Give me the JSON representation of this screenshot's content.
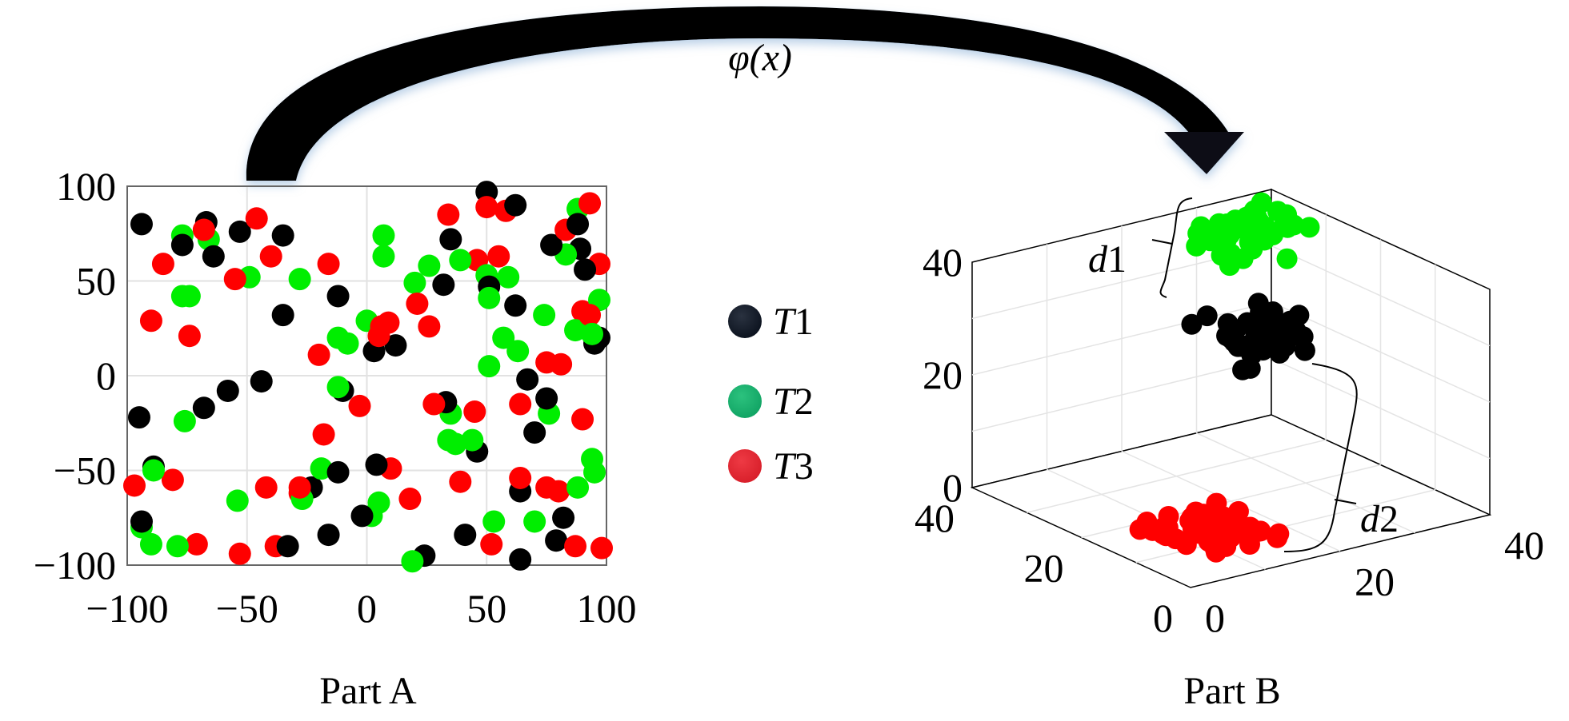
{
  "mapping_label": "φ(x)",
  "legend": [
    {
      "series": "T1",
      "label_italic": "T",
      "label_rest": "1",
      "color": "#0d1420"
    },
    {
      "series": "T2",
      "label_italic": "T",
      "label_rest": "2",
      "color": "#12a565"
    },
    {
      "series": "T3",
      "label_italic": "T",
      "label_rest": "3",
      "color": "#d9202b"
    }
  ],
  "chart_data": [
    {
      "type": "scatter",
      "caption": "Part A",
      "xlim": [
        -100,
        100
      ],
      "ylim": [
        -100,
        100
      ],
      "xticks": [
        "−100",
        "−50",
        "0",
        "50",
        "100"
      ],
      "yticks": [
        "−100",
        "−50",
        "0",
        "50",
        "100"
      ],
      "grid": true,
      "series": [
        {
          "name": "T1",
          "color": "#000000",
          "points": [
            [
              -94,
              80
            ],
            [
              -67,
              81
            ],
            [
              -77,
              69
            ],
            [
              -64,
              63
            ],
            [
              -53,
              76
            ],
            [
              -35,
              74
            ],
            [
              -35,
              32
            ],
            [
              -12,
              42
            ],
            [
              -44,
              -3
            ],
            [
              -58,
              -8
            ],
            [
              -68,
              -17
            ],
            [
              -95,
              -22
            ],
            [
              -89,
              -48
            ],
            [
              -94,
              -77
            ],
            [
              -33,
              -90
            ],
            [
              -16,
              -84
            ],
            [
              -12,
              -51
            ],
            [
              -10,
              -8
            ],
            [
              3,
              13
            ],
            [
              12,
              16
            ],
            [
              4,
              -47
            ],
            [
              -2,
              -74
            ],
            [
              24,
              -95
            ],
            [
              41,
              -84
            ],
            [
              46,
              -40
            ],
            [
              33,
              -14
            ],
            [
              35,
              72
            ],
            [
              32,
              48
            ],
            [
              50,
              97
            ],
            [
              62,
              90
            ],
            [
              62,
              37
            ],
            [
              67,
              -2
            ],
            [
              70,
              -30
            ],
            [
              75,
              -12
            ],
            [
              64,
              -61
            ],
            [
              64,
              -97
            ],
            [
              77,
              69
            ],
            [
              89,
              67
            ],
            [
              91,
              56
            ],
            [
              95,
              17
            ],
            [
              97,
              20
            ],
            [
              82,
              -75
            ],
            [
              79,
              -87
            ],
            [
              88,
              80
            ],
            [
              51,
              47
            ],
            [
              -23,
              -59
            ]
          ]
        },
        {
          "name": "T2",
          "color": "#00ee00",
          "points": [
            [
              -77,
              74
            ],
            [
              -66,
              72
            ],
            [
              -77,
              42
            ],
            [
              -74,
              42
            ],
            [
              -49,
              52
            ],
            [
              -28,
              51
            ],
            [
              -12,
              20
            ],
            [
              -8,
              17
            ],
            [
              -12,
              -6
            ],
            [
              -76,
              -24
            ],
            [
              -89,
              -50
            ],
            [
              -94,
              -80
            ],
            [
              -90,
              -89
            ],
            [
              -79,
              -90
            ],
            [
              -54,
              -66
            ],
            [
              -19,
              -49
            ],
            [
              -27,
              -65
            ],
            [
              0,
              29
            ],
            [
              7,
              74
            ],
            [
              7,
              63
            ],
            [
              20,
              49
            ],
            [
              26,
              58
            ],
            [
              39,
              61
            ],
            [
              50,
              53
            ],
            [
              51,
              41
            ],
            [
              57,
              20
            ],
            [
              59,
              52
            ],
            [
              63,
              13
            ],
            [
              51,
              5
            ],
            [
              35,
              -20
            ],
            [
              34,
              -34
            ],
            [
              37,
              -36
            ],
            [
              44,
              -34
            ],
            [
              2,
              -74
            ],
            [
              5,
              -67
            ],
            [
              19,
              -98
            ],
            [
              53,
              -77
            ],
            [
              70,
              -77
            ],
            [
              74,
              32
            ],
            [
              76,
              -20
            ],
            [
              83,
              64
            ],
            [
              87,
              24
            ],
            [
              88,
              88
            ],
            [
              94,
              22
            ],
            [
              97,
              40
            ],
            [
              94,
              -44
            ],
            [
              95,
              -51
            ],
            [
              88,
              -59
            ]
          ]
        },
        {
          "name": "T3",
          "color": "#ff0000",
          "points": [
            [
              -85,
              59
            ],
            [
              -90,
              29
            ],
            [
              -74,
              21
            ],
            [
              -68,
              77
            ],
            [
              -46,
              83
            ],
            [
              -40,
              63
            ],
            [
              -55,
              51
            ],
            [
              -16,
              59
            ],
            [
              -20,
              11
            ],
            [
              -18,
              -31
            ],
            [
              -3,
              -16
            ],
            [
              6,
              26
            ],
            [
              9,
              28
            ],
            [
              5,
              21
            ],
            [
              21,
              38
            ],
            [
              26,
              26
            ],
            [
              28,
              -15
            ],
            [
              34,
              85
            ],
            [
              46,
              61
            ],
            [
              45,
              -19
            ],
            [
              39,
              -56
            ],
            [
              10,
              -49
            ],
            [
              18,
              -65
            ],
            [
              -28,
              -62
            ],
            [
              -28,
              -59
            ],
            [
              -42,
              -59
            ],
            [
              -38,
              -90
            ],
            [
              -53,
              -94
            ],
            [
              -71,
              -89
            ],
            [
              -81,
              -55
            ],
            [
              -97,
              -58
            ],
            [
              50,
              89
            ],
            [
              58,
              87
            ],
            [
              55,
              63
            ],
            [
              52,
              -89
            ],
            [
              64,
              -15
            ],
            [
              64,
              -54
            ],
            [
              75,
              7
            ],
            [
              81,
              6
            ],
            [
              75,
              -59
            ],
            [
              80,
              -61
            ],
            [
              83,
              77
            ],
            [
              93,
              91
            ],
            [
              90,
              34
            ],
            [
              93,
              32
            ],
            [
              90,
              -23
            ],
            [
              87,
              -90
            ],
            [
              98,
              -91
            ],
            [
              97,
              59
            ]
          ]
        }
      ]
    },
    {
      "type": "scatter",
      "projection": "3d",
      "caption": "Part B",
      "xlim": [
        0,
        40
      ],
      "ylim": [
        0,
        40
      ],
      "zlim": [
        0,
        40
      ],
      "xticks": [
        "40",
        "20",
        "0"
      ],
      "yticks": [
        "0",
        "20",
        "40"
      ],
      "zticks": [
        "40",
        "20",
        "0"
      ],
      "grid": true,
      "clusters": [
        {
          "name": "T2",
          "color": "#00ee00",
          "center": [
            29,
            30,
            40
          ],
          "spread": [
            5,
            5,
            3
          ]
        },
        {
          "name": "T1",
          "color": "#000000",
          "center": [
            25,
            26.5,
            25
          ],
          "spread": [
            5,
            5,
            3
          ]
        },
        {
          "name": "T3",
          "color": "#ff0000",
          "center": [
            13.5,
            12,
            0
          ],
          "spread": [
            6,
            6,
            2
          ]
        }
      ],
      "annotations": [
        {
          "label_italic": "d",
          "label_rest": "1"
        },
        {
          "label_italic": "d",
          "label_rest": "2"
        }
      ]
    }
  ]
}
